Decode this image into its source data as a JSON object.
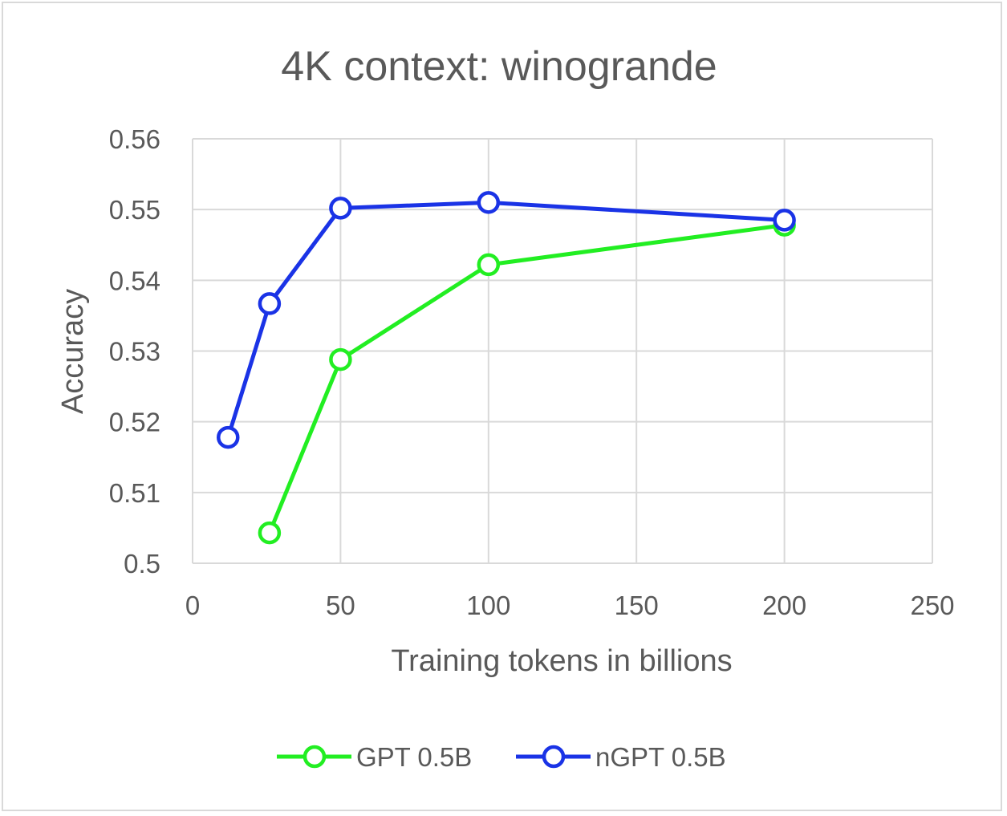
{
  "chart_data": {
    "type": "line",
    "title": "4K context: winogrande",
    "xlabel": "Training tokens in billions",
    "ylabel": "Accuracy",
    "xlim": [
      0,
      250
    ],
    "ylim": [
      0.5,
      0.56
    ],
    "xticks": [
      0,
      50,
      100,
      150,
      200,
      250
    ],
    "yticks": [
      0.5,
      0.51,
      0.52,
      0.53,
      0.54,
      0.55,
      0.56
    ],
    "xtick_labels": [
      "0",
      "50",
      "100",
      "150",
      "200",
      "250"
    ],
    "ytick_labels": [
      "0.5",
      "0.51",
      "0.52",
      "0.53",
      "0.54",
      "0.55",
      "0.56"
    ],
    "grid": true,
    "legend_position": "bottom",
    "series": [
      {
        "name": "GPT 0.5B",
        "color": "#22ee22",
        "x": [
          26,
          50,
          100,
          200
        ],
        "y": [
          0.5043,
          0.5288,
          0.5422,
          0.5478
        ]
      },
      {
        "name": "nGPT 0.5B",
        "color": "#1a33e6",
        "x": [
          12,
          26,
          50,
          100,
          200
        ],
        "y": [
          0.5178,
          0.5367,
          0.5502,
          0.551,
          0.5485
        ]
      }
    ]
  }
}
